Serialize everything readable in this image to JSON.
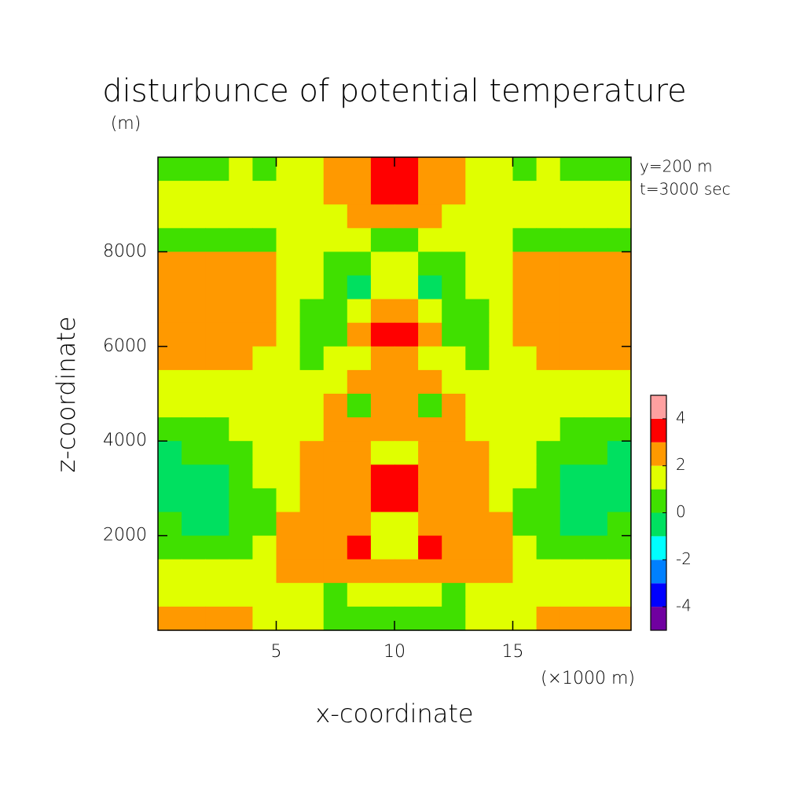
{
  "chart_data": {
    "type": "contour",
    "title": "disturbunce of potential temperature",
    "y_unit": "(m)",
    "x_unit": "(×1000 m)",
    "xlabel": "x-coordinate",
    "ylabel": "z-coordinate",
    "annotations": [
      "y=200 m",
      "t=3000 sec"
    ],
    "xlim": [
      0,
      20
    ],
    "ylim": [
      0,
      10000
    ],
    "xticks": [
      5,
      10,
      15
    ],
    "yticks": [
      2000,
      4000,
      6000,
      8000
    ],
    "x": [
      0.5,
      1.5,
      2.5,
      3.5,
      4.5,
      5.5,
      6.5,
      7.5,
      8.5,
      9.5,
      10.5,
      11.5,
      12.5,
      13.5,
      14.5,
      15.5,
      16.5,
      17.5,
      18.5,
      19.5
    ],
    "y": [
      9750,
      9250,
      8750,
      8250,
      7750,
      7250,
      6750,
      6250,
      5750,
      5250,
      4750,
      4250,
      3750,
      3250,
      2750,
      2250,
      1750,
      1250,
      750,
      250
    ],
    "field": [
      [
        0.5,
        0.5,
        0.5,
        1.5,
        0.5,
        1.5,
        1.5,
        2.5,
        2.5,
        3.5,
        3.5,
        2.5,
        2.5,
        1.5,
        1.5,
        0.5,
        1.5,
        0.5,
        0.5,
        0.5
      ],
      [
        1.5,
        1.5,
        1.5,
        1.5,
        1.5,
        1.5,
        1.5,
        2.5,
        2.5,
        3.5,
        3.5,
        2.5,
        2.5,
        1.5,
        1.5,
        1.5,
        1.5,
        1.5,
        1.5,
        1.5
      ],
      [
        1.5,
        1.5,
        1.5,
        1.5,
        1.5,
        1.5,
        1.5,
        1.5,
        2.5,
        2.5,
        2.5,
        2.5,
        1.5,
        1.5,
        1.5,
        1.5,
        1.5,
        1.5,
        1.5,
        1.5
      ],
      [
        0.5,
        0.5,
        0.5,
        0.5,
        0.5,
        1.5,
        1.5,
        1.5,
        1.5,
        0.5,
        0.5,
        1.5,
        1.5,
        1.5,
        1.5,
        0.5,
        0.5,
        0.5,
        0.5,
        0.5
      ],
      [
        2.5,
        2.5,
        2.5,
        2.5,
        2.5,
        1.5,
        1.5,
        0.5,
        0.5,
        1.5,
        1.5,
        0.5,
        0.5,
        1.5,
        1.5,
        2.5,
        2.5,
        2.5,
        2.5,
        2.5
      ],
      [
        2.5,
        2.5,
        2.5,
        2.5,
        2.5,
        1.5,
        1.5,
        0.5,
        -0.5,
        1.5,
        1.5,
        -0.5,
        0.5,
        1.5,
        1.5,
        2.5,
        2.5,
        2.5,
        2.5,
        2.5
      ],
      [
        2.5,
        2.5,
        2.5,
        2.5,
        2.5,
        1.5,
        0.5,
        0.5,
        1.5,
        2.5,
        2.5,
        1.5,
        0.5,
        0.5,
        1.5,
        2.5,
        2.5,
        2.5,
        2.5,
        2.5
      ],
      [
        2.5,
        2.5,
        2.5,
        2.5,
        2.5,
        1.5,
        0.5,
        0.5,
        2.5,
        3.5,
        3.5,
        2.5,
        0.5,
        0.5,
        1.5,
        2.5,
        2.5,
        2.5,
        2.5,
        2.5
      ],
      [
        2.5,
        2.5,
        2.5,
        2.5,
        1.5,
        1.5,
        0.5,
        1.5,
        1.5,
        2.5,
        2.5,
        1.5,
        1.5,
        0.5,
        1.5,
        1.5,
        2.5,
        2.5,
        2.5,
        2.5
      ],
      [
        1.5,
        1.5,
        1.5,
        1.5,
        1.5,
        1.5,
        1.5,
        1.5,
        2.5,
        2.5,
        2.5,
        2.5,
        1.5,
        1.5,
        1.5,
        1.5,
        1.5,
        1.5,
        1.5,
        1.5
      ],
      [
        1.5,
        1.5,
        1.5,
        1.5,
        1.5,
        1.5,
        1.5,
        2.5,
        0.5,
        2.5,
        2.5,
        0.5,
        2.5,
        1.5,
        1.5,
        1.5,
        1.5,
        1.5,
        1.5,
        1.5
      ],
      [
        0.5,
        0.5,
        0.5,
        1.5,
        1.5,
        1.5,
        1.5,
        2.5,
        2.5,
        2.5,
        2.5,
        2.5,
        2.5,
        1.5,
        1.5,
        1.5,
        1.5,
        0.5,
        0.5,
        0.5
      ],
      [
        -0.5,
        0.5,
        0.5,
        0.5,
        1.5,
        1.5,
        2.5,
        2.5,
        2.5,
        1.5,
        1.5,
        2.5,
        2.5,
        2.5,
        1.5,
        1.5,
        0.5,
        0.5,
        0.5,
        -0.5
      ],
      [
        -0.5,
        -0.5,
        -0.5,
        0.5,
        1.5,
        1.5,
        2.5,
        2.5,
        2.5,
        3.5,
        3.5,
        2.5,
        2.5,
        2.5,
        1.5,
        1.5,
        0.5,
        -0.5,
        -0.5,
        -0.5
      ],
      [
        -0.5,
        -0.5,
        -0.5,
        0.5,
        0.5,
        1.5,
        2.5,
        2.5,
        2.5,
        3.5,
        3.5,
        2.5,
        2.5,
        2.5,
        1.5,
        0.5,
        0.5,
        -0.5,
        -0.5,
        -0.5
      ],
      [
        0.5,
        -0.5,
        -0.5,
        0.5,
        0.5,
        2.5,
        2.5,
        2.5,
        2.5,
        1.5,
        1.5,
        2.5,
        2.5,
        2.5,
        2.5,
        0.5,
        0.5,
        -0.5,
        -0.5,
        0.5
      ],
      [
        0.5,
        0.5,
        0.5,
        0.5,
        1.5,
        2.5,
        2.5,
        2.5,
        3.5,
        1.5,
        1.5,
        3.5,
        2.5,
        2.5,
        2.5,
        1.5,
        0.5,
        0.5,
        0.5,
        0.5
      ],
      [
        1.5,
        1.5,
        1.5,
        1.5,
        1.5,
        2.5,
        2.5,
        2.5,
        2.5,
        2.5,
        2.5,
        2.5,
        2.5,
        2.5,
        2.5,
        1.5,
        1.5,
        1.5,
        1.5,
        1.5
      ],
      [
        1.5,
        1.5,
        1.5,
        1.5,
        1.5,
        1.5,
        1.5,
        0.5,
        1.5,
        1.5,
        1.5,
        1.5,
        0.5,
        1.5,
        1.5,
        1.5,
        1.5,
        1.5,
        1.5,
        1.5
      ],
      [
        2.5,
        2.5,
        2.5,
        2.5,
        1.5,
        1.5,
        1.5,
        0.5,
        0.5,
        0.5,
        0.5,
        0.5,
        0.5,
        1.5,
        1.5,
        1.5,
        2.5,
        2.5,
        2.5,
        2.5
      ]
    ],
    "levels": [
      -5,
      -4,
      -3,
      -2,
      -1,
      0,
      1,
      2,
      3,
      4,
      5
    ],
    "colors": [
      "#7000a0",
      "#0000ff",
      "#0080ff",
      "#00ffff",
      "#00e060",
      "#40e000",
      "#e0ff00",
      "#ff9900",
      "#ff0000",
      "#ffa0a0"
    ],
    "colorbar_ticks": [
      4,
      2,
      0,
      -2,
      -4
    ]
  }
}
